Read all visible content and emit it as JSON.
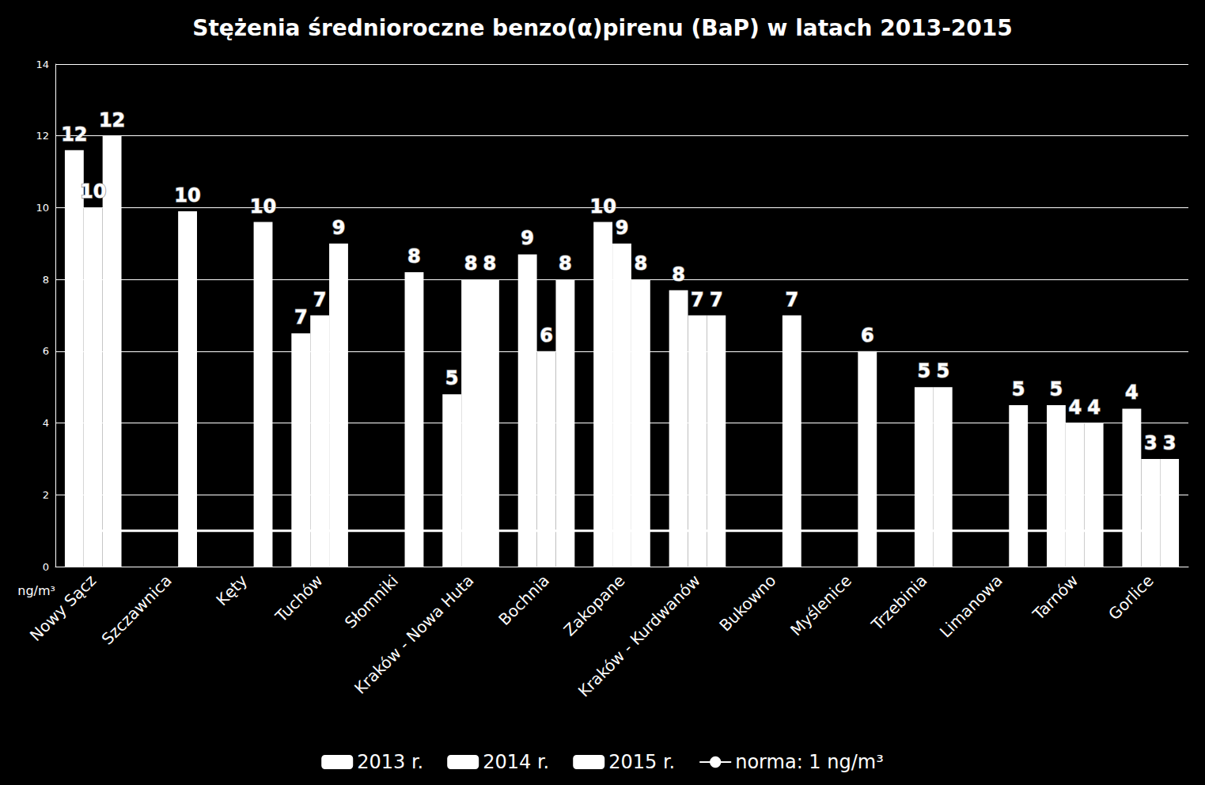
{
  "chart_data": {
    "type": "bar",
    "title": "Stężenia średnioroczne benzo(α)pirenu (BaP) w latach 2013-2015",
    "y_label": "ng/m³",
    "categories": [
      "Nowy Sącz",
      "Szczawnica",
      "Kęty",
      "Tuchów",
      "Słomniki",
      "Kraków - Nowa Huta",
      "Bochnia",
      "Zakopane",
      "Kraków - Kurdwanów",
      "Bukowno",
      "Myślenice",
      "Trzebinia",
      "Limanowa",
      "Tarnów",
      "Gorlice"
    ],
    "series": [
      {
        "name": "2013 r.",
        "color": "#ffffff",
        "values": [
          11.6,
          null,
          null,
          6.5,
          null,
          4.8,
          8.7,
          9.6,
          7.7,
          null,
          null,
          null,
          null,
          4.5,
          4.4
        ],
        "value_labels": [
          "12",
          null,
          null,
          "7",
          null,
          "5",
          "9",
          "10",
          "8",
          null,
          null,
          null,
          null,
          "5",
          "4"
        ]
      },
      {
        "name": "2014 r.",
        "color": "#ffffff",
        "values": [
          10.0,
          null,
          null,
          7.0,
          null,
          8.0,
          6.0,
          9.0,
          7.0,
          null,
          null,
          5.0,
          null,
          4.0,
          3.0
        ],
        "value_labels": [
          "10",
          null,
          null,
          "7",
          null,
          "8",
          "6",
          "9",
          "7",
          null,
          null,
          "5",
          null,
          "4",
          "3"
        ]
      },
      {
        "name": "2015 r.",
        "color": "#ffffff",
        "values": [
          12.0,
          9.9,
          9.6,
          9.0,
          8.2,
          8.0,
          8.0,
          8.0,
          7.0,
          7.0,
          6.0,
          5.0,
          4.5,
          4.0,
          3.0
        ],
        "value_labels": [
          "12",
          "10",
          "10",
          "9",
          "8",
          "8",
          "8",
          "8",
          "7",
          "7",
          "6",
          "5",
          "5",
          "4",
          "3"
        ]
      },
      {
        "name": "norma: 1 ng/m³",
        "type": "line",
        "color": "#ffffff",
        "values": [
          1,
          1,
          1,
          1,
          1,
          1,
          1,
          1,
          1,
          1,
          1,
          1,
          1,
          1,
          1
        ]
      }
    ],
    "ylim": [
      0,
      14
    ],
    "yticks": [
      0,
      2,
      4,
      6,
      8,
      10,
      12,
      14
    ],
    "grid": true,
    "legend": "bottom",
    "data_labels": true
  }
}
